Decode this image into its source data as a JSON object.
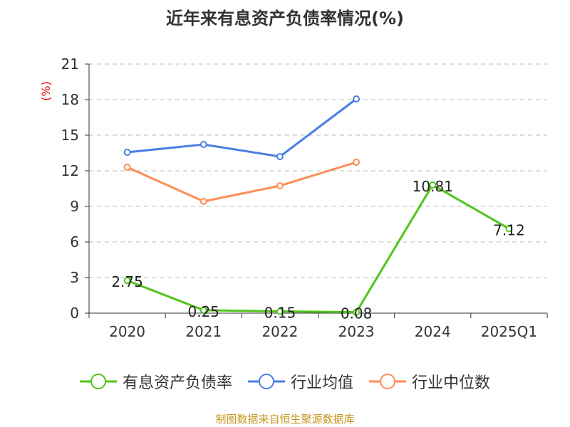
{
  "chart_data": {
    "type": "line",
    "title": "近年来有息资产负债率情况(%)",
    "ylabel": "(%)",
    "xlabel": "",
    "ylim": [
      0,
      21
    ],
    "yticks": [
      0,
      3,
      6,
      9,
      12,
      15,
      18,
      21
    ],
    "grid": true,
    "categories": [
      "2020",
      "2021",
      "2022",
      "2023",
      "2024",
      "2025Q1"
    ],
    "series": [
      {
        "name": "有息资产负债率",
        "color": "#52c41a",
        "values": [
          2.75,
          0.25,
          0.15,
          0.08,
          10.81,
          7.12
        ],
        "labels": [
          "2.75",
          "0.25",
          "0.15",
          "0.08",
          "10.81",
          "7.12"
        ]
      },
      {
        "name": "行业均值",
        "color": "#4a7fe0",
        "values": [
          13.56,
          14.22,
          13.2,
          18.06,
          null,
          null
        ]
      },
      {
        "name": "行业中位数",
        "color": "#ff8c55",
        "values": [
          12.3,
          9.42,
          10.74,
          12.72,
          null,
          null
        ]
      }
    ],
    "legend_position": "bottom",
    "source": "制图数据来自恒生聚源数据库"
  }
}
